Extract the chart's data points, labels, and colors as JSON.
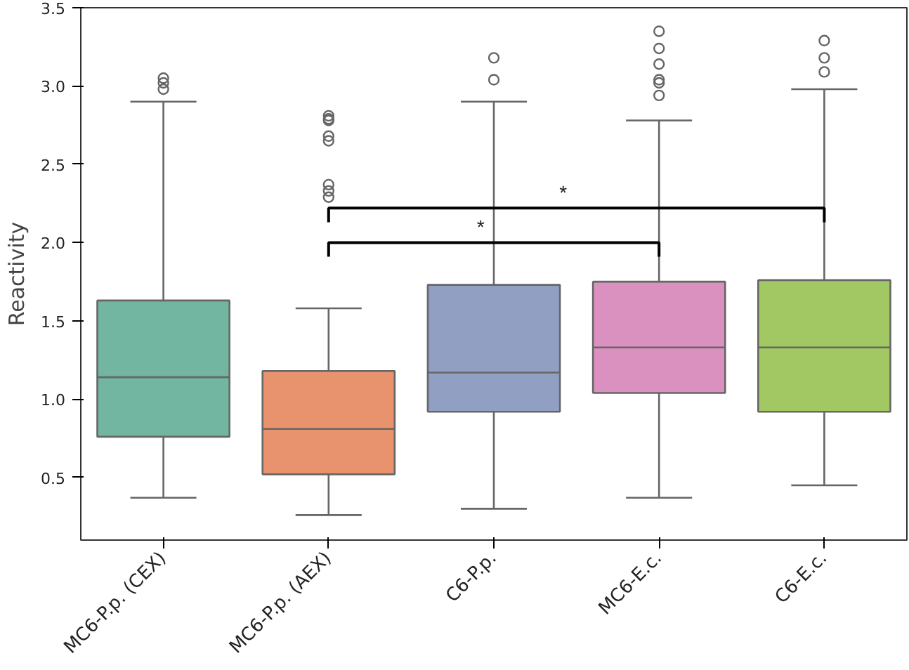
{
  "chart_data": {
    "type": "box",
    "ylabel": "Reactivity",
    "categories": [
      "MC6-P.p. (CEX)",
      "MC6-P.p. (AEX)",
      "C6-P.p.",
      "MC6-E.c.",
      "C6-E.c."
    ],
    "colors": [
      "#72b5a0",
      "#e8936e",
      "#909fc2",
      "#da91bf",
      "#a1c862"
    ],
    "boxes": [
      {
        "low": 0.37,
        "q1": 0.76,
        "median": 1.14,
        "q3": 1.63,
        "high": 2.9,
        "outliers": [
          2.98,
          3.02,
          3.05
        ]
      },
      {
        "low": 0.26,
        "q1": 0.52,
        "median": 0.81,
        "q3": 1.18,
        "high": 1.58,
        "outliers": [
          2.29,
          2.33,
          2.37,
          2.65,
          2.68,
          2.78,
          2.79,
          2.81
        ]
      },
      {
        "low": 0.3,
        "q1": 0.92,
        "median": 1.17,
        "q3": 1.73,
        "high": 2.9,
        "outliers": [
          3.04,
          3.18
        ]
      },
      {
        "low": 0.37,
        "q1": 1.04,
        "median": 1.33,
        "q3": 1.75,
        "high": 2.78,
        "outliers": [
          2.94,
          3.02,
          3.04,
          3.14,
          3.24,
          3.35
        ]
      },
      {
        "low": 0.45,
        "q1": 0.92,
        "median": 1.33,
        "q3": 1.76,
        "high": 2.98,
        "outliers": [
          3.09,
          3.18,
          3.29
        ]
      }
    ],
    "annotations": [
      "*",
      "*"
    ],
    "ylim": [
      0.1,
      3.5
    ],
    "yticks": [
      {
        "value": 0.5,
        "label": "0.5"
      },
      {
        "value": 1.0,
        "label": "1.0"
      },
      {
        "value": 1.5,
        "label": "1.5"
      },
      {
        "value": 2.0,
        "label": "2.0"
      },
      {
        "value": 2.5,
        "label": "2.5"
      },
      {
        "value": 3.0,
        "label": "3.0"
      },
      {
        "value": 3.5,
        "label": "3.5"
      }
    ],
    "grid": false
  }
}
